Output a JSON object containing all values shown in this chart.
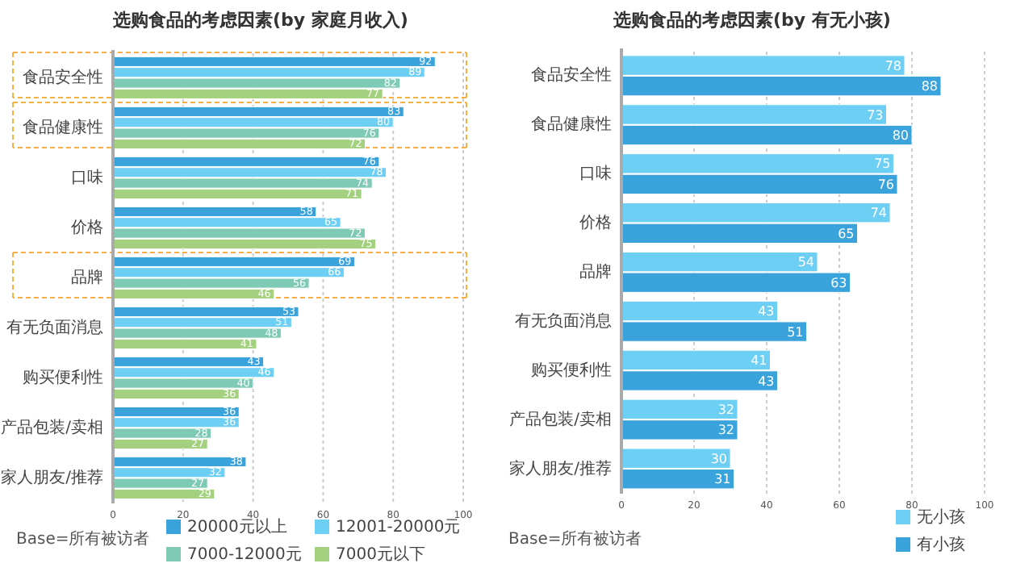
{
  "chart_data": [
    {
      "type": "bar",
      "orientation": "horizontal",
      "title": "选购食品的考虑因素(by 家庭月收入)",
      "categories": [
        "食品安全性",
        "食品健康性",
        "口味",
        "价格",
        "品牌",
        "有无负面消息",
        "购买便利性",
        "产品包装/卖相",
        "家人朋友/推荐"
      ],
      "series": [
        {
          "name": "20000元以上",
          "color": "#3ba3dc",
          "values": [
            92,
            83,
            76,
            58,
            69,
            53,
            43,
            36,
            38
          ]
        },
        {
          "name": "12001-20000元",
          "color": "#6dcff3",
          "values": [
            89,
            80,
            78,
            65,
            66,
            51,
            46,
            36,
            32
          ]
        },
        {
          "name": "7000-12000元",
          "color": "#7fcab5",
          "values": [
            82,
            76,
            74,
            72,
            56,
            48,
            40,
            28,
            27
          ]
        },
        {
          "name": "7000元以下",
          "color": "#a3d17f",
          "values": [
            77,
            72,
            71,
            75,
            46,
            41,
            36,
            27,
            29
          ]
        }
      ],
      "xlim": [
        0,
        100
      ],
      "xticks": [
        0,
        20,
        40,
        60,
        80,
        100
      ],
      "grid": "x",
      "legend": "bottom right",
      "data_labels": true,
      "annotations": [
        "Base=所有被访者"
      ]
    },
    {
      "type": "bar",
      "orientation": "horizontal",
      "title": "选购食品的考虑因素(by 有无小孩)",
      "categories": [
        "食品安全性",
        "食品健康性",
        "口味",
        "价格",
        "品牌",
        "有无负面消息",
        "购买便利性",
        "产品包装/卖相",
        "家人朋友/推荐"
      ],
      "series": [
        {
          "name": "无小孩",
          "color": "#6dcff3",
          "values": [
            78,
            73,
            75,
            74,
            54,
            43,
            41,
            32,
            30
          ]
        },
        {
          "name": "有小孩",
          "color": "#3ba3dc",
          "values": [
            88,
            80,
            76,
            65,
            63,
            51,
            43,
            32,
            31
          ]
        }
      ],
      "xlim": [
        0,
        100
      ],
      "xticks": [
        0,
        20,
        40,
        60,
        80,
        100
      ],
      "grid": "x",
      "legend": "bottom right",
      "data_labels": true,
      "annotations": [
        "Base=所有被访者"
      ]
    }
  ]
}
